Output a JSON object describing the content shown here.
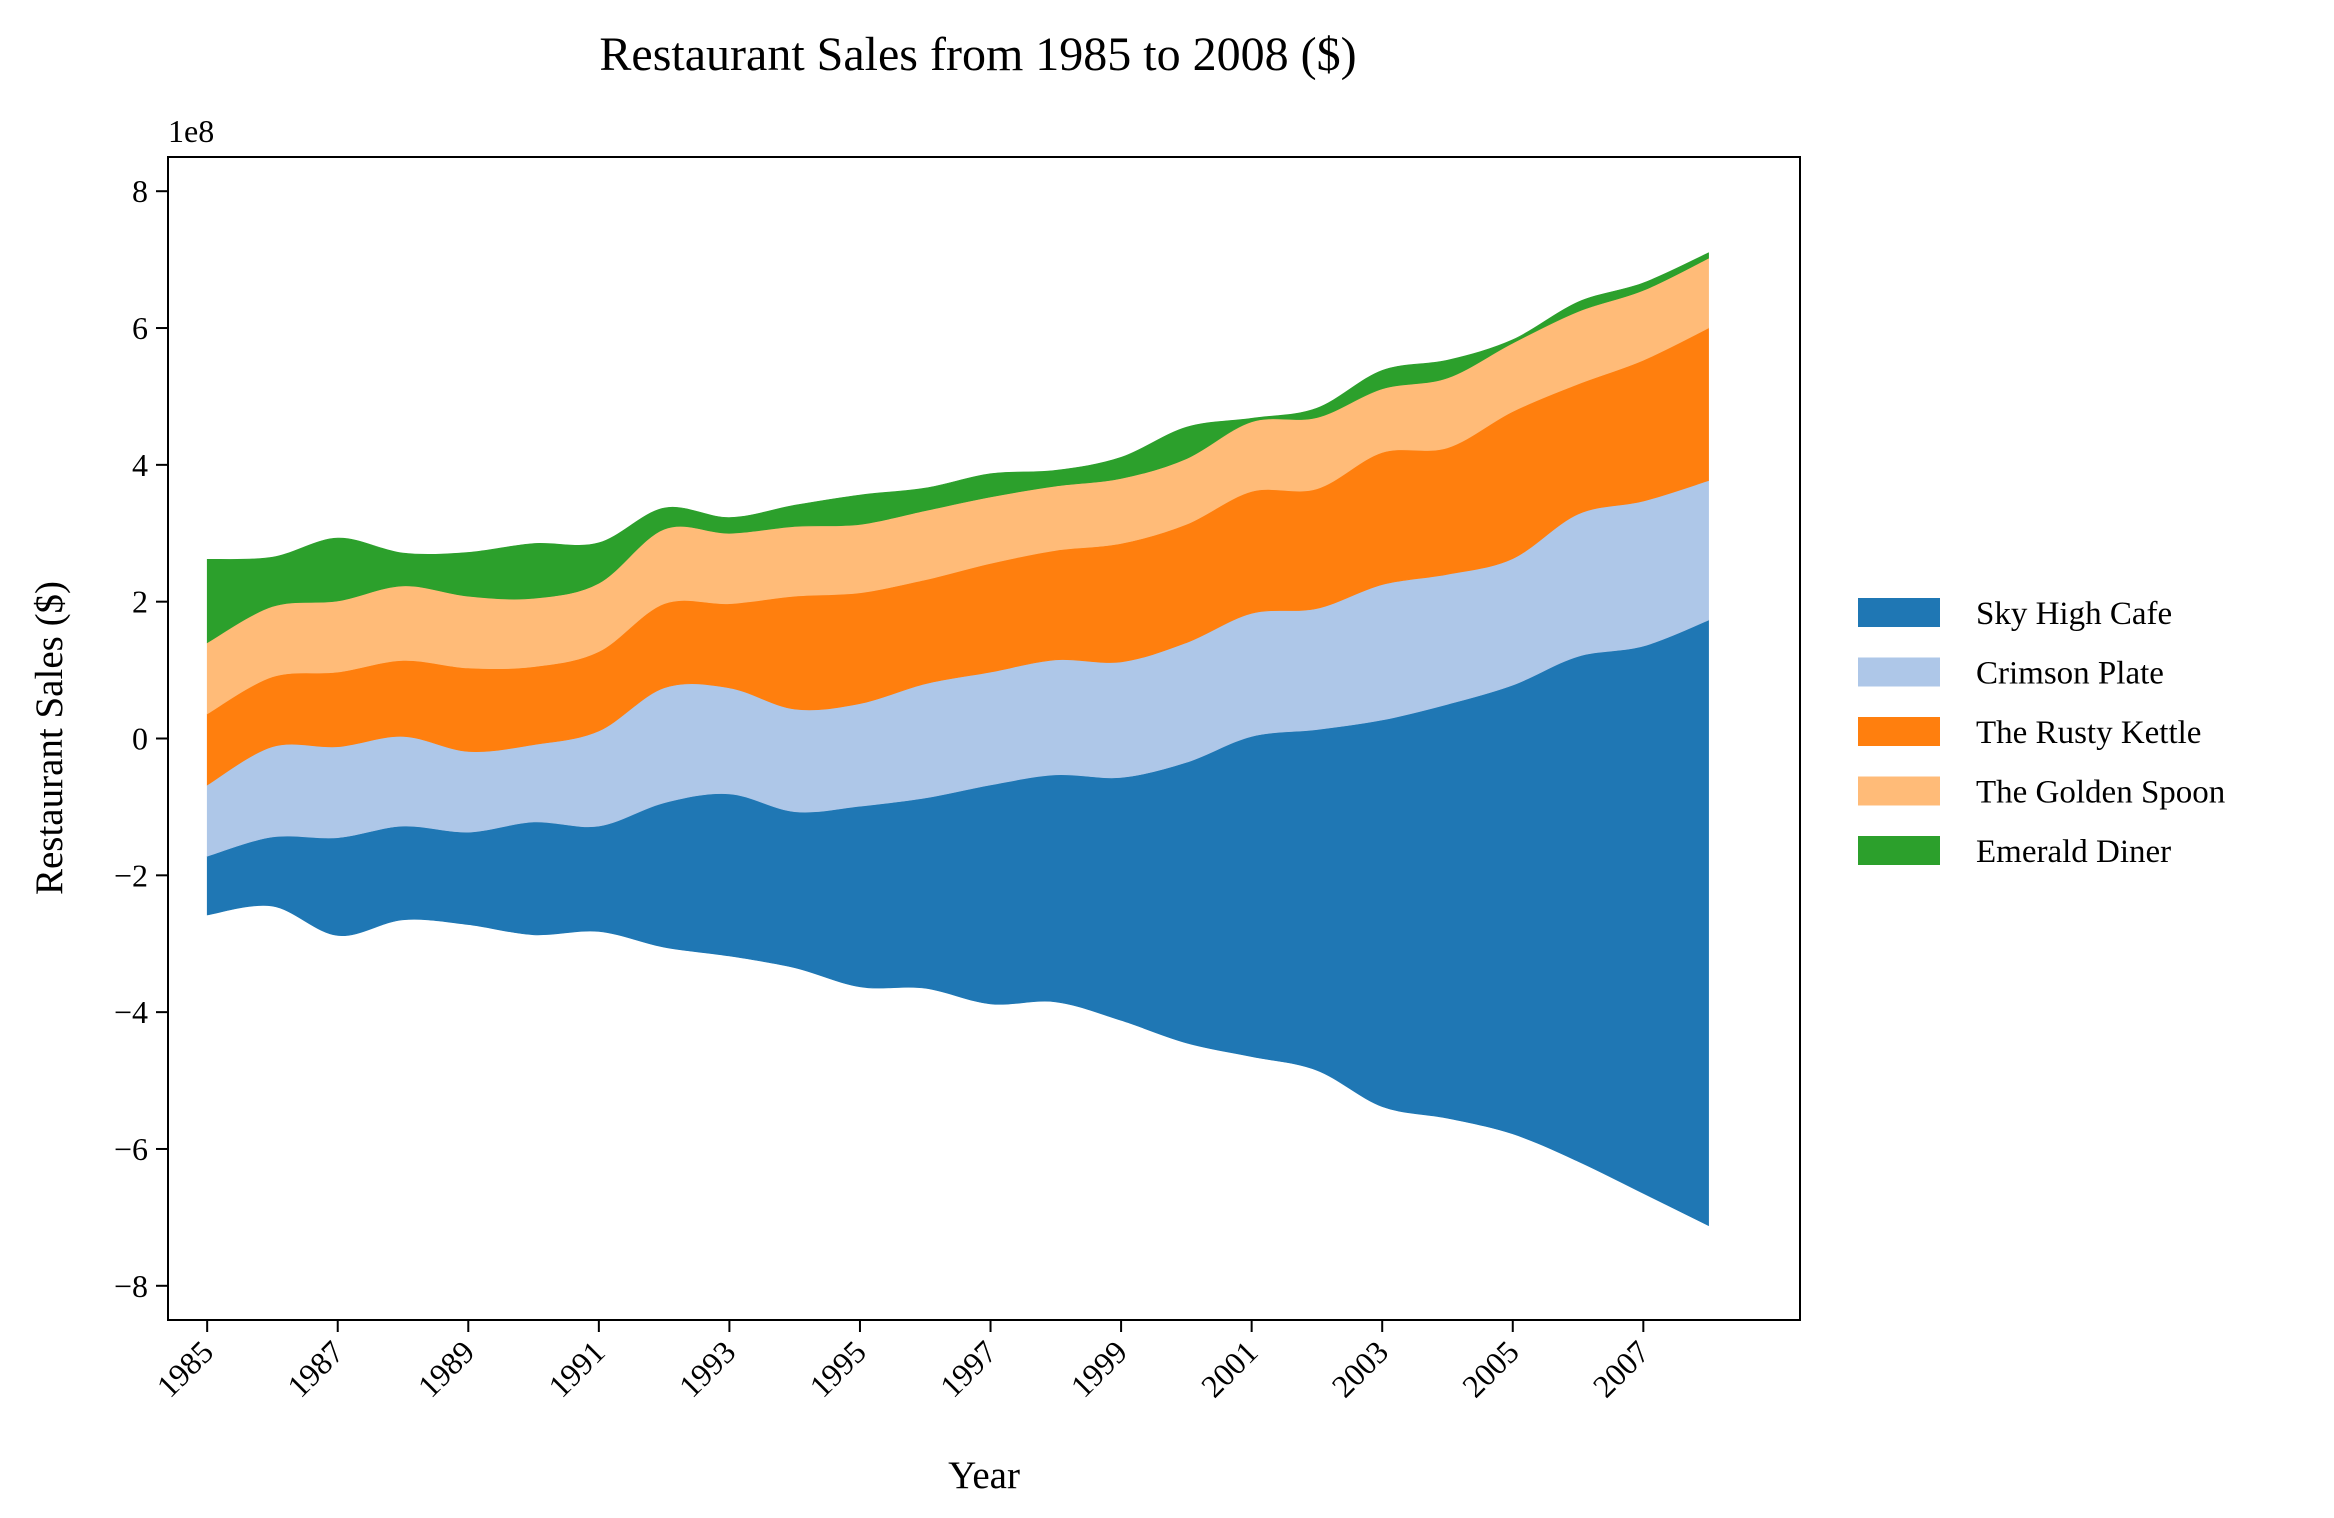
{
  "chart_data": {
    "type": "area",
    "subtype": "streamgraph",
    "title": "Restaurant Sales from 1985 to 2008 ($)",
    "xlabel": "Year",
    "ylabel": "Restaurant Sales ($)",
    "y_offset_text": "1e8",
    "y_scale": 100000000,
    "x": [
      1985,
      1986,
      1987,
      1988,
      1989,
      1990,
      1991,
      1992,
      1993,
      1994,
      1995,
      1996,
      1997,
      1998,
      1999,
      2000,
      2001,
      2002,
      2003,
      2004,
      2005,
      2006,
      2007,
      2008
    ],
    "xticks": [
      1985,
      1987,
      1989,
      1991,
      1993,
      1995,
      1997,
      1999,
      2001,
      2003,
      2005,
      2007
    ],
    "xtick_labels": [
      "1985",
      "1987",
      "1989",
      "1991",
      "1993",
      "1995",
      "1997",
      "1999",
      "2001",
      "2003",
      "2005",
      "2007"
    ],
    "xlim": [
      1984.4,
      2009.4
    ],
    "yticks": [
      -8,
      -6,
      -4,
      -2,
      0,
      2,
      4,
      6,
      8
    ],
    "ytick_labels": [
      "−8",
      "−6",
      "−4",
      "−2",
      "0",
      "2",
      "4",
      "6",
      "8"
    ],
    "ylim": [
      -8.5,
      8.5
    ],
    "grid": false,
    "legend_position": "right",
    "baseline": [
      -2.58,
      -2.45,
      -2.88,
      -2.65,
      -2.72,
      -2.87,
      -2.82,
      -3.05,
      -3.18,
      -3.35,
      -3.63,
      -3.65,
      -3.88,
      -3.85,
      -4.12,
      -4.45,
      -4.65,
      -4.85,
      -5.38,
      -5.55,
      -5.78,
      -6.18,
      -6.65,
      -7.12
    ],
    "series": [
      {
        "name": "Sky High Cafe",
        "color": "#1f77b4",
        "values": [
          0.86,
          1.01,
          1.43,
          1.37,
          1.35,
          1.65,
          1.54,
          2.11,
          2.37,
          2.28,
          2.64,
          2.78,
          3.2,
          3.32,
          3.55,
          4.1,
          4.68,
          4.98,
          5.65,
          6.05,
          6.56,
          7.38,
          8.0,
          8.85
        ]
      },
      {
        "name": "Crimson Plate",
        "color": "#aec7e8",
        "values": [
          1.04,
          1.32,
          1.33,
          1.31,
          1.18,
          1.13,
          1.39,
          1.68,
          1.55,
          1.5,
          1.5,
          1.67,
          1.65,
          1.68,
          1.69,
          1.75,
          1.8,
          1.77,
          1.98,
          1.9,
          1.85,
          2.08,
          2.12,
          2.04
        ]
      },
      {
        "name": "The Rusty Kettle",
        "color": "#ff7f0e",
        "values": [
          1.04,
          1.02,
          1.09,
          1.11,
          1.22,
          1.14,
          1.16,
          1.23,
          1.23,
          1.65,
          1.62,
          1.52,
          1.59,
          1.6,
          1.73,
          1.73,
          1.78,
          1.75,
          1.93,
          1.85,
          2.15,
          1.9,
          2.06,
          2.23
        ]
      },
      {
        "name": "The Golden Spoon",
        "color": "#ffbb78",
        "values": [
          1.04,
          1.03,
          1.04,
          1.09,
          1.05,
          1.0,
          1.0,
          1.09,
          1.03,
          1.02,
          1.0,
          1.01,
          0.97,
          0.94,
          0.95,
          0.96,
          1.02,
          1.04,
          0.93,
          1.02,
          1.0,
          1.06,
          1.02,
          1.02
        ]
      },
      {
        "name": "Emerald Diner",
        "color": "#2ca02c",
        "values": [
          1.22,
          0.72,
          0.92,
          0.48,
          0.64,
          0.8,
          0.59,
          0.31,
          0.23,
          0.31,
          0.43,
          0.33,
          0.34,
          0.23,
          0.31,
          0.46,
          0.05,
          0.14,
          0.27,
          0.26,
          0.05,
          0.14,
          0.11,
          0.08
        ]
      }
    ]
  }
}
